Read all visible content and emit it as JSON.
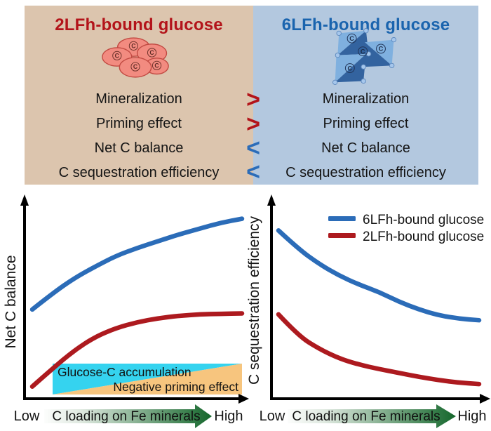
{
  "panels": {
    "carbon_label": "C",
    "left": {
      "title": "2LFh-bound glucose"
    },
    "right": {
      "title": "6LFh-bound glucose"
    },
    "rows": [
      {
        "label": "Mineralization",
        "operator": ">",
        "operator_color": "#b3141a"
      },
      {
        "label": "Priming effect",
        "operator": ">",
        "operator_color": "#b3141a"
      },
      {
        "label": "Net C balance",
        "operator": "<",
        "operator_color": "#2b6cb8"
      },
      {
        "label": "C sequestration efficiency",
        "operator": "<",
        "operator_color": "#2b6cb8"
      }
    ]
  },
  "colors": {
    "page_bg": "#ffffff",
    "left_bg": "#dcc5ae",
    "right_bg": "#b3c8df",
    "left_accent": "#b3141a",
    "right_accent": "#1a64ae",
    "text": "#141414",
    "curve_blue": "#2b6cb8",
    "curve_red": "#ad1a1f",
    "cyan_region": "#35d3ef",
    "orange_region": "#f7c57e",
    "arrow_green": "#15672c",
    "cell_fill": "#f28b80",
    "cell_stroke": "#c14a42",
    "tetra_light": "#7fb0df",
    "tetra_dark": "#33639f",
    "tetra_node": "#a6c7ec"
  },
  "chart_data": [
    {
      "type": "line",
      "title": "",
      "xlabel": "C loading on Fe minerals",
      "ylabel": "Net C balance",
      "x_tick_labels": [
        "Low",
        "High"
      ],
      "ylim": [
        0,
        1
      ],
      "grid": false,
      "axis_style": "qualitative arrow axes, no numeric ticks",
      "x": [
        0,
        0.1,
        0.2,
        0.3,
        0.4,
        0.5,
        0.6,
        0.7,
        0.8,
        0.9,
        1.0
      ],
      "series": [
        {
          "name": "6LFh-bound glucose",
          "color": "#2b6cb8",
          "values": [
            0.45,
            0.535,
            0.61,
            0.67,
            0.725,
            0.765,
            0.8,
            0.835,
            0.865,
            0.895,
            0.915
          ]
        },
        {
          "name": "2LFh-bound glucose",
          "color": "#ad1a1f",
          "values": [
            0.055,
            0.15,
            0.24,
            0.31,
            0.355,
            0.385,
            0.405,
            0.418,
            0.425,
            0.428,
            0.43
          ]
        }
      ],
      "annotations": [
        {
          "label": "Glucose-C accumulation",
          "shape": "upper-left triangle band above x-axis",
          "color": "#35d3ef"
        },
        {
          "label": "Negative priming effect",
          "shape": "lower-right triangle band above x-axis",
          "color": "#f7c57e"
        }
      ]
    },
    {
      "type": "line",
      "title": "",
      "xlabel": "C loading on Fe minerals",
      "ylabel": "C sequestration efficiency",
      "x_tick_labels": [
        "Low",
        "High"
      ],
      "ylim": [
        0,
        1
      ],
      "grid": false,
      "axis_style": "qualitative arrow axes, no numeric ticks",
      "legend": {
        "position": "top-right",
        "entries": [
          "6LFh-bound glucose",
          "2LFh-bound glucose"
        ]
      },
      "x": [
        0,
        0.1,
        0.2,
        0.3,
        0.4,
        0.5,
        0.6,
        0.7,
        0.8,
        0.9,
        1.0
      ],
      "series": [
        {
          "name": "6LFh-bound glucose",
          "color": "#2b6cb8",
          "values": [
            0.855,
            0.76,
            0.685,
            0.625,
            0.578,
            0.54,
            0.49,
            0.45,
            0.42,
            0.403,
            0.395
          ]
        },
        {
          "name": "2LFh-bound glucose",
          "color": "#ad1a1f",
          "values": [
            0.425,
            0.315,
            0.25,
            0.2,
            0.168,
            0.145,
            0.125,
            0.105,
            0.088,
            0.075,
            0.068
          ]
        }
      ]
    }
  ]
}
